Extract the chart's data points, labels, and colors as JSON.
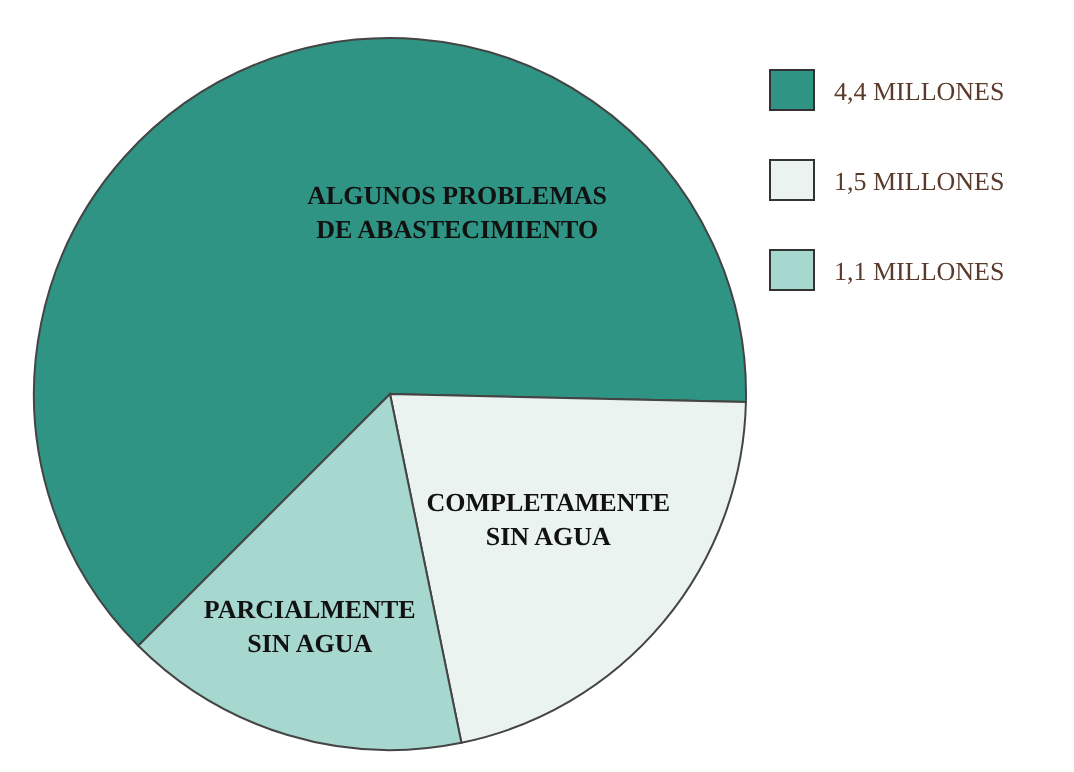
{
  "chart_data": {
    "type": "pie",
    "categories": [
      "4,4 MILLONES",
      "1,5 MILLONES",
      "1,1 MILLONES"
    ],
    "values": [
      4.4,
      1.5,
      1.1
    ],
    "colors": [
      "#2f9484",
      "#eaf3f0",
      "#a6d8d0"
    ],
    "annotations": [
      "ALGUNOS PROBLEMAS DE ABASTECIMIENTO",
      "COMPLETAMENTE SIN AGUA",
      "PARCIALMENTE SIN AGUA"
    ],
    "legend": "top right"
  }
}
